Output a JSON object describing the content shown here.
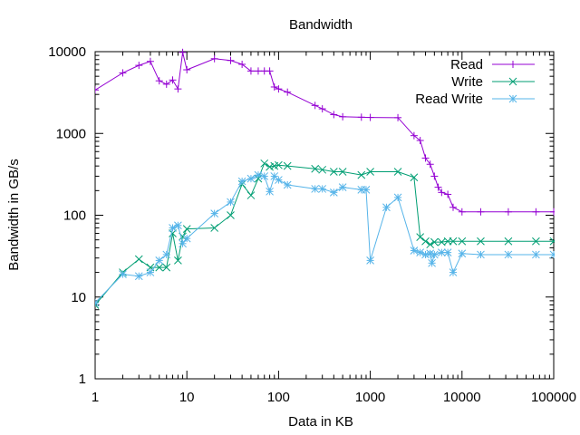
{
  "chart_data": {
    "type": "line",
    "title": "Bandwidth",
    "xlabel": "Data in KB",
    "ylabel": "Bandwidth in GB/s",
    "xscale": "log",
    "yscale": "log",
    "xlim": [
      1,
      100000
    ],
    "ylim": [
      1,
      10000
    ],
    "x_ticks": [
      1,
      10,
      100,
      1000,
      10000,
      100000
    ],
    "x_tick_labels": [
      "1",
      "10",
      "100",
      "1000",
      "10000",
      "100000"
    ],
    "y_ticks": [
      1,
      10,
      100,
      1000,
      10000
    ],
    "y_tick_labels": [
      "1",
      "10",
      "100",
      "1000",
      "10000"
    ],
    "grid": false,
    "legend_position": "top-right",
    "series": [
      {
        "name": "Read",
        "color": "#9400d3",
        "marker": "plus",
        "points": [
          [
            1,
            3400
          ],
          [
            2,
            5500
          ],
          [
            3,
            6800
          ],
          [
            4,
            7600
          ],
          [
            5,
            4400
          ],
          [
            6,
            4000
          ],
          [
            7,
            4500
          ],
          [
            8,
            3500
          ],
          [
            9,
            9800
          ],
          [
            10,
            6000
          ],
          [
            20,
            8200
          ],
          [
            30,
            7800
          ],
          [
            40,
            7000
          ],
          [
            50,
            5800
          ],
          [
            60,
            5800
          ],
          [
            70,
            5800
          ],
          [
            80,
            5800
          ],
          [
            90,
            3700
          ],
          [
            100,
            3500
          ],
          [
            125,
            3200
          ],
          [
            250,
            2200
          ],
          [
            300,
            2000
          ],
          [
            400,
            1700
          ],
          [
            500,
            1600
          ],
          [
            800,
            1580
          ],
          [
            1000,
            1570
          ],
          [
            2000,
            1560
          ],
          [
            3000,
            940
          ],
          [
            3500,
            820
          ],
          [
            4000,
            500
          ],
          [
            4500,
            420
          ],
          [
            5000,
            300
          ],
          [
            5500,
            220
          ],
          [
            6000,
            190
          ],
          [
            7000,
            180
          ],
          [
            8000,
            125
          ],
          [
            10000,
            110
          ],
          [
            16000,
            110
          ],
          [
            32000,
            110
          ],
          [
            64000,
            110
          ],
          [
            100000,
            110
          ]
        ]
      },
      {
        "name": "Write",
        "color": "#009e73",
        "marker": "cross",
        "points": [
          [
            1,
            8
          ],
          [
            2,
            20
          ],
          [
            3,
            29
          ],
          [
            4,
            23
          ],
          [
            5,
            23
          ],
          [
            6,
            23
          ],
          [
            7,
            60
          ],
          [
            8,
            28
          ],
          [
            9,
            55
          ],
          [
            10,
            68
          ],
          [
            20,
            70
          ],
          [
            30,
            100
          ],
          [
            40,
            240
          ],
          [
            50,
            175
          ],
          [
            60,
            280
          ],
          [
            70,
            430
          ],
          [
            80,
            390
          ],
          [
            90,
            400
          ],
          [
            100,
            410
          ],
          [
            125,
            400
          ],
          [
            250,
            370
          ],
          [
            300,
            360
          ],
          [
            400,
            340
          ],
          [
            500,
            340
          ],
          [
            800,
            310
          ],
          [
            1000,
            340
          ],
          [
            2000,
            340
          ],
          [
            3000,
            290
          ],
          [
            3500,
            54
          ],
          [
            4000,
            48
          ],
          [
            4500,
            44
          ],
          [
            5000,
            47
          ],
          [
            6000,
            47
          ],
          [
            7000,
            48
          ],
          [
            8000,
            48
          ],
          [
            10000,
            48
          ],
          [
            16000,
            48
          ],
          [
            32000,
            48
          ],
          [
            64000,
            48
          ],
          [
            100000,
            48
          ]
        ]
      },
      {
        "name": "Read Write",
        "color": "#56b4e9",
        "marker": "star",
        "points": [
          [
            1,
            8.5
          ],
          [
            2,
            19
          ],
          [
            3,
            18
          ],
          [
            4,
            20
          ],
          [
            5,
            28
          ],
          [
            6,
            33
          ],
          [
            7,
            70
          ],
          [
            8,
            75
          ],
          [
            9,
            45
          ],
          [
            10,
            52
          ],
          [
            20,
            105
          ],
          [
            30,
            145
          ],
          [
            40,
            260
          ],
          [
            50,
            280
          ],
          [
            60,
            310
          ],
          [
            70,
            300
          ],
          [
            80,
            195
          ],
          [
            90,
            300
          ],
          [
            100,
            270
          ],
          [
            125,
            235
          ],
          [
            250,
            210
          ],
          [
            300,
            210
          ],
          [
            400,
            190
          ],
          [
            500,
            220
          ],
          [
            800,
            205
          ],
          [
            900,
            205
          ],
          [
            1000,
            28
          ],
          [
            1500,
            125
          ],
          [
            2000,
            165
          ],
          [
            3000,
            37
          ],
          [
            3500,
            35
          ],
          [
            4000,
            33
          ],
          [
            4500,
            34
          ],
          [
            4700,
            26
          ],
          [
            5000,
            33
          ],
          [
            6000,
            35
          ],
          [
            7000,
            35
          ],
          [
            8000,
            20
          ],
          [
            10000,
            34
          ],
          [
            16000,
            33
          ],
          [
            32000,
            33
          ],
          [
            64000,
            33
          ],
          [
            100000,
            33
          ]
        ]
      }
    ]
  }
}
